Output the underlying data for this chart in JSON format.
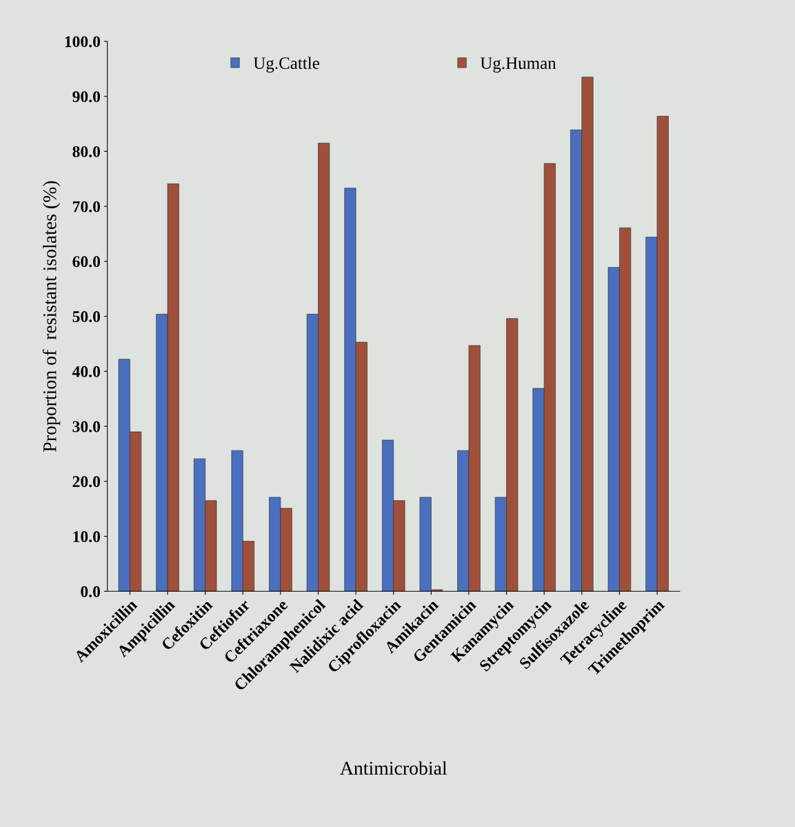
{
  "chart_data": {
    "type": "bar",
    "xlabel": "Antimicrobial",
    "ylabel": "Proportion of  resistant isolates (%)",
    "categories": [
      "Amoxicillin",
      "Ampicillin",
      "Cefoxitin",
      "Ceftiofur",
      "Ceftriaxone",
      "Chloramphenicol",
      "Nalidixic acid",
      "Ciprofloxacin",
      "Amikacin",
      "Gentamicin",
      "Kanamycin",
      "Streptomycin",
      "Sulfisoxazole",
      "Tetracycline",
      "Trimethoprim"
    ],
    "series": [
      {
        "name": "Ug.Cattle",
        "color": "#4a6fbf",
        "values": [
          42.2,
          50.4,
          24.1,
          25.6,
          17.1,
          50.4,
          73.3,
          27.5,
          17.1,
          25.6,
          17.1,
          36.9,
          83.9,
          58.9,
          64.4
        ]
      },
      {
        "name": "Ug.Human",
        "color": "#a0503a",
        "values": [
          29.0,
          74.1,
          16.5,
          9.1,
          15.1,
          81.5,
          45.3,
          16.5,
          0.3,
          44.7,
          49.6,
          77.8,
          93.5,
          66.1,
          86.4
        ]
      }
    ],
    "ylim": [
      0,
      100
    ],
    "yticks": [
      {
        "value": 0,
        "label": "0.0"
      },
      {
        "value": 10,
        "label": "10.0"
      },
      {
        "value": 20,
        "label": "20.0"
      },
      {
        "value": 30,
        "label": "30.0"
      },
      {
        "value": 40,
        "label": "40.0"
      },
      {
        "value": 50,
        "label": "50.0"
      },
      {
        "value": 60,
        "label": "60.0"
      },
      {
        "value": 70,
        "label": "70.0"
      },
      {
        "value": 80,
        "label": "80.0"
      },
      {
        "value": 90,
        "label": "90.0"
      },
      {
        "value": 100,
        "label": "100.0"
      }
    ],
    "grid": false,
    "legend": "top"
  }
}
